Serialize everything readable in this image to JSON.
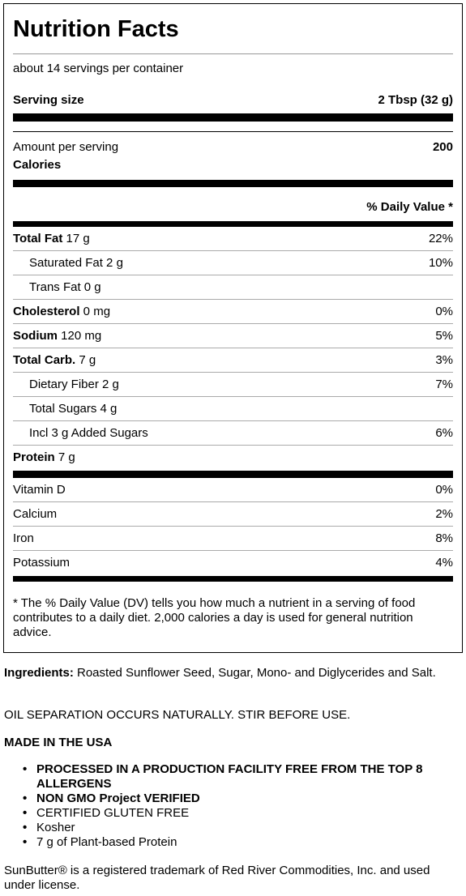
{
  "label": {
    "title": "Nutrition Facts",
    "servings_per_container": "about 14 servings per container",
    "serving_size_label": "Serving size",
    "serving_size_value": "2 Tbsp (32 g)",
    "amount_per_serving": "Amount per serving",
    "calories_label": "Calories",
    "calories_value": "200",
    "daily_value_header": "% Daily Value *",
    "nutrients": [
      {
        "name": "Total Fat",
        "amount": " 17 g",
        "dv": "22%"
      },
      {
        "name": "Saturated Fat 2 g",
        "amount": "",
        "dv": "10%"
      },
      {
        "name": "Trans Fat 0 g",
        "amount": "",
        "dv": ""
      },
      {
        "name": "Cholesterol",
        "amount": " 0 mg",
        "dv": "0%"
      },
      {
        "name": "Sodium",
        "amount": " 120 mg",
        "dv": "5%"
      },
      {
        "name": "Total Carb.",
        "amount": " 7 g",
        "dv": "3%"
      },
      {
        "name": "Dietary Fiber 2 g",
        "amount": "",
        "dv": "7%"
      },
      {
        "name": "Total Sugars 4 g",
        "amount": "",
        "dv": ""
      },
      {
        "name": "Incl 3 g Added Sugars",
        "amount": "",
        "dv": "6%"
      },
      {
        "name": "Protein",
        "amount": " 7 g",
        "dv": ""
      }
    ],
    "vitamins": [
      {
        "name": "Vitamin D",
        "dv": "0%"
      },
      {
        "name": "Calcium",
        "dv": "2%"
      },
      {
        "name": "Iron",
        "dv": "8%"
      },
      {
        "name": "Potassium",
        "dv": "4%"
      }
    ],
    "footnote": "* The % Daily Value (DV) tells you how much a nutrient in a serving of food contributes to a daily diet. 2,000 calories a day is used for general nutrition advice."
  },
  "ingredients_label": "Ingredients:",
  "ingredients_text": " Roasted Sunflower Seed, Sugar, Mono- and Diglycerides and Salt.",
  "oil_separation": "OIL SEPARATION OCCURS NATURALLY. STIR BEFORE USE.",
  "made_in": "MADE IN THE USA",
  "claims": [
    "PROCESSED IN A PRODUCTION FACILITY FREE FROM THE TOP 8 ALLERGENS",
    "NON GMO Project VERIFIED",
    "CERTIFIED GLUTEN FREE",
    "Kosher",
    "7 g of Plant-based Protein"
  ],
  "trademark": "SunButter® is a registered trademark of Red River Commodities, Inc. and used under license."
}
